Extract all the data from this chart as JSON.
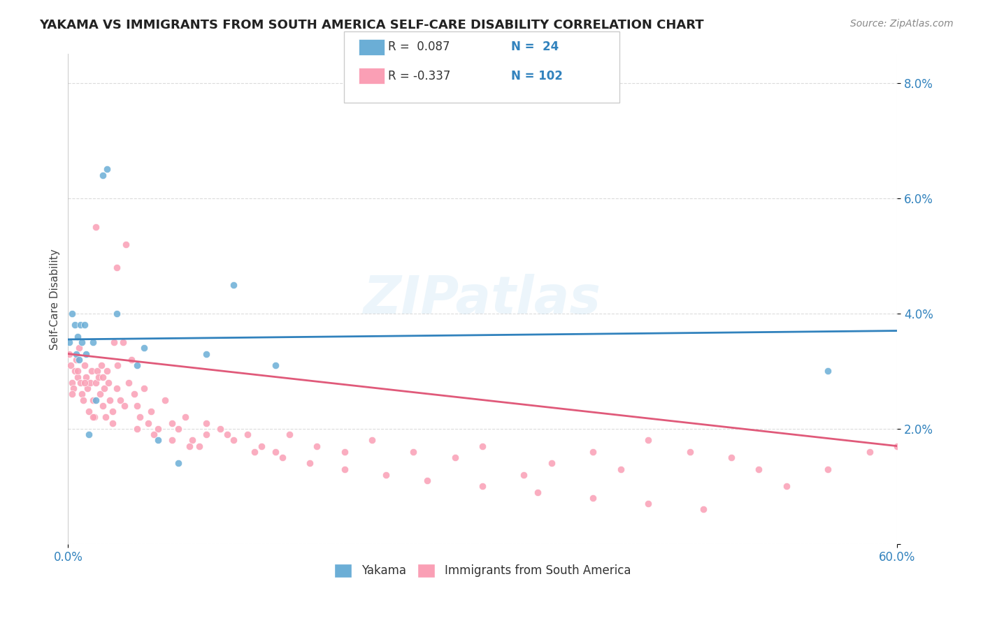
{
  "title": "YAKAMA VS IMMIGRANTS FROM SOUTH AMERICA SELF-CARE DISABILITY CORRELATION CHART",
  "source": "Source: ZipAtlas.com",
  "ylabel": "Self-Care Disability",
  "xmin": 0.0,
  "xmax": 0.6,
  "ymin": 0.0,
  "ymax": 0.085,
  "color_blue": "#6baed6",
  "color_pink": "#fa9fb5",
  "color_blue_line": "#3182bd",
  "color_pink_line": "#e05a7a",
  "color_text_blue": "#3182bd",
  "color_grid": "#cccccc",
  "background_color": "#ffffff",
  "watermark": "ZIPatlas",
  "yakama_x": [
    0.001,
    0.003,
    0.005,
    0.006,
    0.007,
    0.008,
    0.009,
    0.01,
    0.012,
    0.013,
    0.015,
    0.018,
    0.02,
    0.025,
    0.028,
    0.035,
    0.05,
    0.055,
    0.065,
    0.08,
    0.1,
    0.12,
    0.15,
    0.55
  ],
  "yakama_y": [
    0.035,
    0.04,
    0.038,
    0.033,
    0.036,
    0.032,
    0.038,
    0.035,
    0.038,
    0.033,
    0.019,
    0.035,
    0.025,
    0.064,
    0.065,
    0.04,
    0.031,
    0.034,
    0.018,
    0.014,
    0.033,
    0.045,
    0.031,
    0.03
  ],
  "sa_x": [
    0.001,
    0.002,
    0.003,
    0.004,
    0.005,
    0.006,
    0.007,
    0.008,
    0.009,
    0.01,
    0.011,
    0.012,
    0.013,
    0.014,
    0.015,
    0.016,
    0.017,
    0.018,
    0.019,
    0.02,
    0.021,
    0.022,
    0.023,
    0.024,
    0.025,
    0.026,
    0.027,
    0.028,
    0.029,
    0.03,
    0.032,
    0.033,
    0.035,
    0.036,
    0.038,
    0.04,
    0.042,
    0.044,
    0.046,
    0.048,
    0.05,
    0.052,
    0.055,
    0.058,
    0.06,
    0.065,
    0.07,
    0.075,
    0.08,
    0.085,
    0.09,
    0.095,
    0.1,
    0.11,
    0.12,
    0.13,
    0.14,
    0.15,
    0.16,
    0.18,
    0.2,
    0.22,
    0.25,
    0.28,
    0.3,
    0.33,
    0.35,
    0.38,
    0.4,
    0.42,
    0.45,
    0.48,
    0.5,
    0.52,
    0.55,
    0.58,
    0.6,
    0.003,
    0.007,
    0.012,
    0.018,
    0.025,
    0.032,
    0.041,
    0.05,
    0.062,
    0.075,
    0.088,
    0.1,
    0.115,
    0.135,
    0.155,
    0.175,
    0.2,
    0.23,
    0.26,
    0.3,
    0.34,
    0.38,
    0.42,
    0.46,
    0.02,
    0.035
  ],
  "sa_y": [
    0.033,
    0.031,
    0.028,
    0.027,
    0.03,
    0.032,
    0.029,
    0.034,
    0.028,
    0.026,
    0.025,
    0.031,
    0.029,
    0.027,
    0.023,
    0.028,
    0.03,
    0.025,
    0.022,
    0.028,
    0.03,
    0.029,
    0.026,
    0.031,
    0.024,
    0.027,
    0.022,
    0.03,
    0.028,
    0.025,
    0.023,
    0.035,
    0.027,
    0.031,
    0.025,
    0.035,
    0.052,
    0.028,
    0.032,
    0.026,
    0.024,
    0.022,
    0.027,
    0.021,
    0.023,
    0.02,
    0.025,
    0.021,
    0.02,
    0.022,
    0.018,
    0.017,
    0.019,
    0.02,
    0.018,
    0.019,
    0.017,
    0.016,
    0.019,
    0.017,
    0.016,
    0.018,
    0.016,
    0.015,
    0.017,
    0.012,
    0.014,
    0.016,
    0.013,
    0.018,
    0.016,
    0.015,
    0.013,
    0.01,
    0.013,
    0.016,
    0.017,
    0.026,
    0.03,
    0.028,
    0.022,
    0.029,
    0.021,
    0.024,
    0.02,
    0.019,
    0.018,
    0.017,
    0.021,
    0.019,
    0.016,
    0.015,
    0.014,
    0.013,
    0.012,
    0.011,
    0.01,
    0.009,
    0.008,
    0.007,
    0.006,
    0.055,
    0.048
  ],
  "yak_line_y": [
    0.0355,
    0.037
  ],
  "sa_line_y": [
    0.033,
    0.017
  ]
}
